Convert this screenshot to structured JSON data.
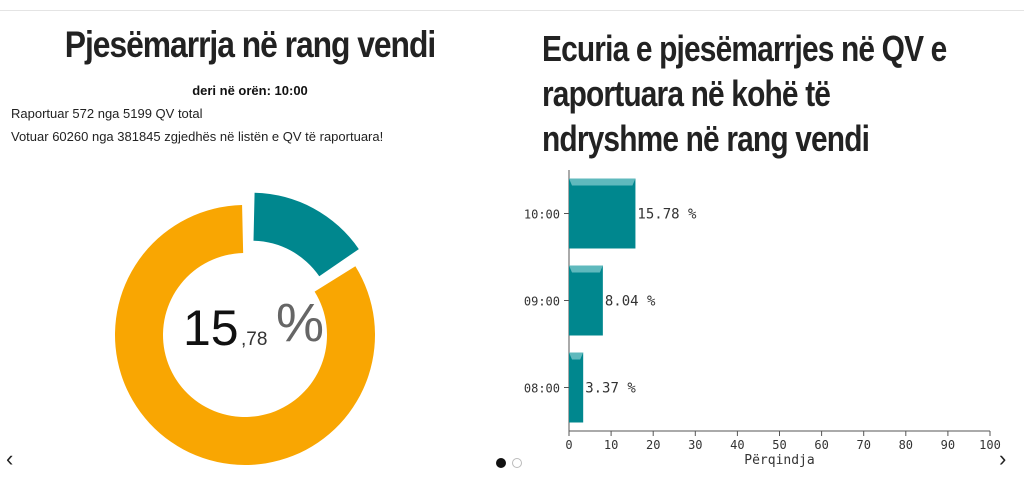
{
  "left": {
    "title": "Pjesëmarrja në rang vendi",
    "subtitle": "deri në orën: 10:00",
    "info_line1": "Raportuar 572 nga 5199 QV total",
    "info_line2": "Votuar 60260 nga 381845 zgjedhës në listën e QV të raportuara!",
    "percent_int": "15",
    "percent_dec": ",78",
    "percent_sign": "%",
    "donut_data": {
      "type": "pie",
      "values": [
        15.78,
        84.22
      ]
    }
  },
  "right": {
    "title_lines": [
      "Ecuria e pjesëmarrjes në QV e",
      "raportuara në kohë të",
      "ndryshme në rang vendi"
    ]
  },
  "chart_data": {
    "type": "bar",
    "orientation": "horizontal",
    "categories": [
      "10:00",
      "09:00",
      "08:00"
    ],
    "values": [
      15.78,
      8.04,
      3.37
    ],
    "value_labels": [
      "15.78 %",
      "8.04 %",
      "3.37 %"
    ],
    "xlabel": "Përqindja",
    "xlim": [
      0,
      100
    ],
    "xticks": [
      0,
      10,
      20,
      30,
      40,
      50,
      60,
      70,
      80,
      90,
      100
    ]
  },
  "colors": {
    "teal": "#00878e",
    "orange": "#f9a602"
  },
  "nav": {
    "prev_icon": "‹",
    "next_icon": "›"
  }
}
